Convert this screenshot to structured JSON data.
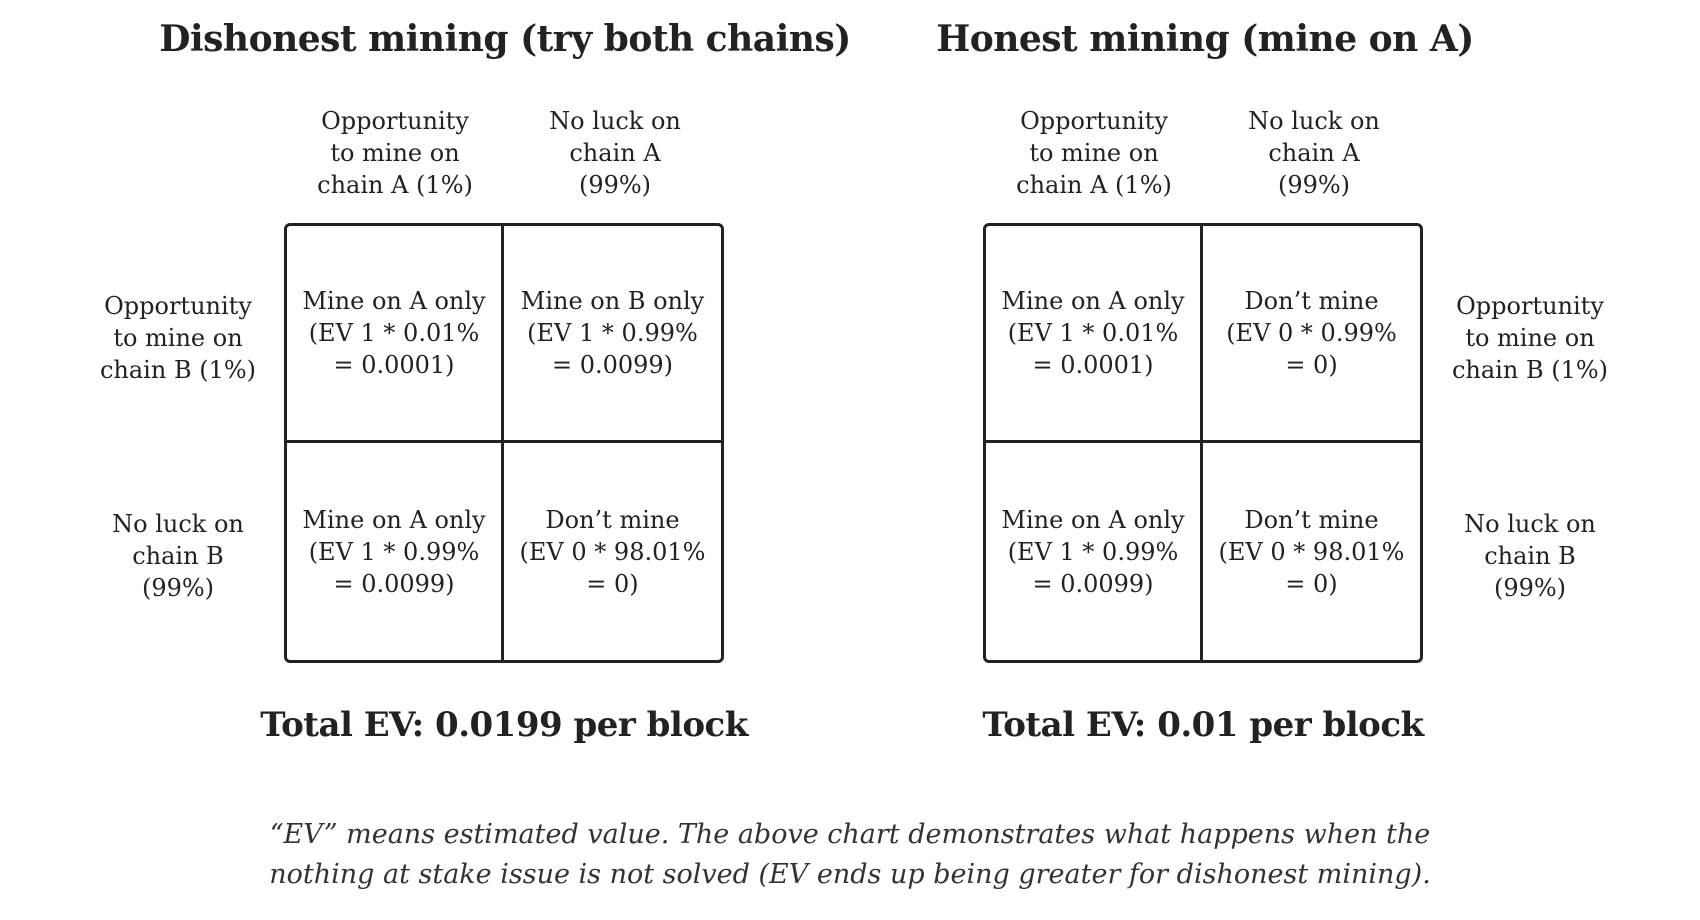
{
  "left": {
    "title": "Dishonest mining (try both chains)",
    "col_headers": [
      "Opportunity\nto mine on\nchain A (1%)",
      "No luck on\nchain A\n(99%)"
    ],
    "row_headers": [
      "Opportunity\nto mine on\nchain B (1%)",
      "No luck on\nchain B\n(99%)"
    ],
    "cells": {
      "tl": "Mine on A only\n(EV 1 * 0.01%\n= 0.0001)",
      "tr": "Mine on B only\n(EV 1 * 0.99%\n= 0.0099)",
      "bl": "Mine on A only\n(EV 1 * 0.99%\n= 0.0099)",
      "br": "Don’t mine\n(EV 0 * 98.01%\n= 0)"
    },
    "total": "Total EV: 0.0199 per block"
  },
  "right": {
    "title": "Honest mining (mine on A)",
    "col_headers": [
      "Opportunity\nto mine on\nchain A (1%)",
      "No luck on\nchain A\n(99%)"
    ],
    "row_headers": [
      "Opportunity\nto mine on\nchain B (1%)",
      "No luck on\nchain B\n(99%)"
    ],
    "cells": {
      "tl": "Mine on A only\n(EV 1 * 0.01%\n= 0.0001)",
      "tr": "Don’t mine\n(EV 0 * 0.99%\n= 0)",
      "bl": "Mine on A only\n(EV 1 * 0.99%\n= 0.0099)",
      "br": "Don’t mine\n(EV 0 * 98.01%\n= 0)"
    },
    "total": "Total EV: 0.01 per block"
  },
  "caption": "“EV” means estimated value. The above chart demonstrates what happens when the\nnothing at stake issue is not solved (EV ends up being greater for dishonest mining)."
}
